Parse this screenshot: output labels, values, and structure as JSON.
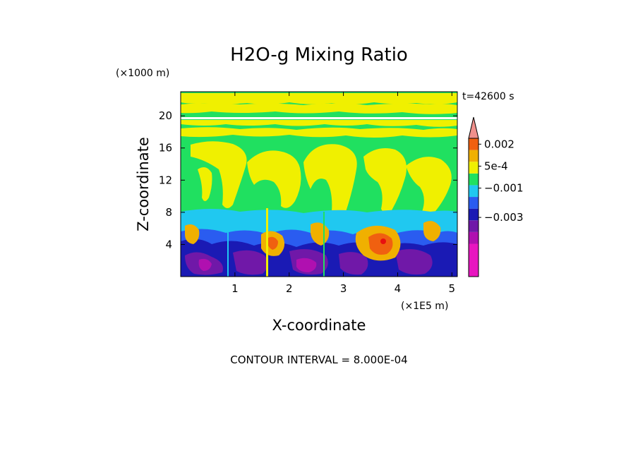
{
  "chart_data": {
    "type": "heatmap",
    "title": "H2O-g Mixing Ratio",
    "xlabel": "X-coordinate",
    "ylabel": "Z-coordinate",
    "x_unit_label": "(×1E5 m)",
    "y_unit_label": "(×1000 m)",
    "time_label": "t=42600 s",
    "footer": "CONTOUR INTERVAL = 8.000E-04",
    "xlim": [
      0,
      5.1
    ],
    "ylim": [
      0,
      23
    ],
    "x_ticks": [
      "1",
      "2",
      "3",
      "4",
      "5"
    ],
    "y_ticks": [
      "4",
      "8",
      "12",
      "16",
      "20"
    ],
    "x_tick_values": [
      1,
      2,
      3,
      4,
      5
    ],
    "y_tick_values": [
      4,
      8,
      12,
      16,
      20
    ],
    "contour_interval": 0.0008,
    "colorbar": {
      "levels": [
        -0.0056,
        -0.0048,
        -0.004,
        -0.0032,
        -0.0024,
        -0.0016,
        -0.0008,
        0,
        0.0008,
        0.0016,
        0.0024
      ],
      "labels": [
        {
          "text": "0.002",
          "value": 0.002
        },
        {
          "text": "5e-4",
          "value": 0.0005
        },
        {
          "text": "−0.001",
          "value": -0.001
        },
        {
          "text": "−0.003",
          "value": -0.003
        }
      ],
      "colors": [
        "#e816c0",
        "#b010b0",
        "#7018a8",
        "#1a1ab4",
        "#2a5cf0",
        "#20c8f0",
        "#20e060",
        "#f0f000",
        "#f0b000",
        "#f06010",
        "#e81010",
        "#f0908c"
      ]
    },
    "field_description_levels": {
      "upper_layer": "green with yellow bands",
      "middle_plumes": "yellow",
      "lower_layer": "cyan to blue/purple with orange-red cores"
    }
  }
}
